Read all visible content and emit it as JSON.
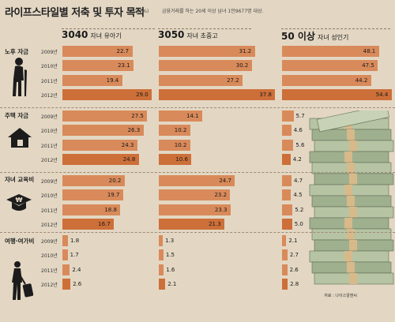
{
  "title": "라이프스타일별 저축 및 투자 목적",
  "unit_note": "(단위: %)",
  "survey_note": "금융거래를 하는 20세 이상 남녀 1만9677명 대상.",
  "source": "자료 : 나이스알앤씨",
  "colors": {
    "bar": "#d98a5a",
    "bar_recent": "#cd6f39",
    "background": "#e3d7c3"
  },
  "chart_data": {
    "type": "bar",
    "years": [
      "2009년",
      "2010년",
      "2011년",
      "2012년"
    ],
    "groups": [
      {
        "name": "3040",
        "sub": "자녀 유아기"
      },
      {
        "name": "3050",
        "sub": "자녀 초중고"
      },
      {
        "name": "50 이상",
        "sub": "자녀 성인기"
      }
    ],
    "categories": [
      "노후 자금",
      "주택 자금",
      "자녀 교육비",
      "여행·여가비"
    ],
    "values": [
      [
        [
          22.7,
          23.1,
          19.4,
          29.0
        ],
        [
          31.2,
          30.2,
          27.2,
          37.8
        ],
        [
          48.1,
          47.5,
          44.2,
          54.4
        ]
      ],
      [
        [
          27.5,
          26.3,
          24.3,
          24.8
        ],
        [
          14.1,
          10.2,
          10.2,
          10.6
        ],
        [
          5.7,
          4.6,
          5.6,
          4.2
        ]
      ],
      [
        [
          20.2,
          19.7,
          18.8,
          16.7
        ],
        [
          24.7,
          23.2,
          23.3,
          21.3
        ],
        [
          4.7,
          4.5,
          5.2,
          5.0
        ]
      ],
      [
        [
          1.8,
          1.7,
          2.4,
          2.6
        ],
        [
          1.3,
          1.5,
          1.6,
          2.1
        ],
        [
          2.1,
          2.7,
          2.6,
          2.8
        ]
      ]
    ],
    "value_labels": [
      [
        [
          "22.7",
          "23.1",
          "19.4",
          "29.0"
        ],
        [
          "31.2",
          "30.2",
          "27.2",
          "37.8"
        ],
        [
          "48.1",
          "47.5",
          "44.2",
          "54.4"
        ]
      ],
      [
        [
          "27.5",
          "26.3",
          "24.3",
          "24.8"
        ],
        [
          "14.1",
          "10.2",
          "10.2",
          "10.6"
        ],
        [
          "5.7",
          "4.6",
          "5.6",
          "4.2"
        ]
      ],
      [
        [
          "20.2",
          "19.7",
          "18.8",
          "16.7"
        ],
        [
          "24.7",
          "23.2",
          "23.3",
          "21.3"
        ],
        [
          "4.7",
          "4.5",
          "5.2",
          "5.0"
        ]
      ],
      [
        [
          "1.8",
          "1.7",
          "2.4",
          "2.6"
        ],
        [
          "1.3",
          "1.5",
          "1.6",
          "2.1"
        ],
        [
          "2.1",
          "2.7",
          "2.6",
          "2.8"
        ]
      ]
    ]
  },
  "icons": [
    "elderly-person-icon",
    "house-icon",
    "graduation-cap-won-icon",
    "traveler-luggage-icon",
    "money-stack-image"
  ]
}
